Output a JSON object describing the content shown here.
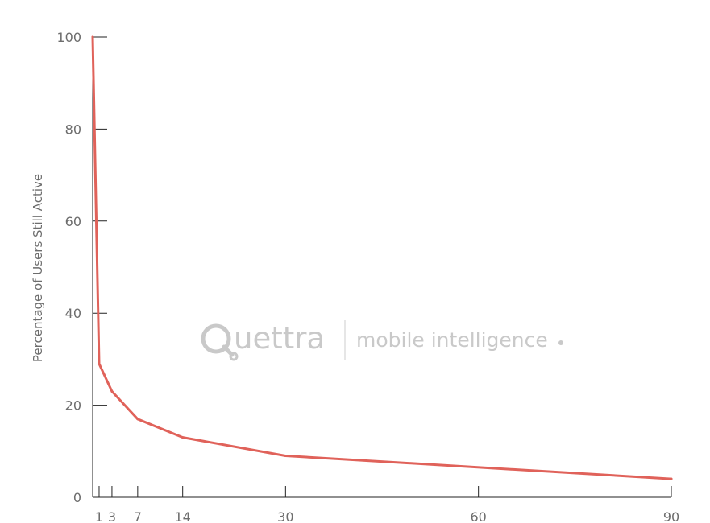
{
  "chart_data": {
    "type": "line",
    "title": "",
    "xlabel": "",
    "ylabel": "Percentage of Users Still Active",
    "xlim": [
      0,
      90
    ],
    "ylim": [
      0,
      100
    ],
    "x_ticks": [
      1,
      3,
      7,
      14,
      30,
      60,
      90
    ],
    "y_ticks": [
      0,
      20,
      40,
      60,
      80,
      100
    ],
    "grid": false,
    "series": [
      {
        "color": "#e0625a",
        "x": [
          0,
          1,
          3,
          7,
          14,
          30,
          90
        ],
        "y": [
          100,
          29,
          23,
          17,
          13,
          9,
          4
        ]
      }
    ]
  },
  "watermark": {
    "brand": "Quettra",
    "brand_rest": "uettra",
    "tagline": "mobile intelligence",
    "color": "#c9c9c9"
  }
}
